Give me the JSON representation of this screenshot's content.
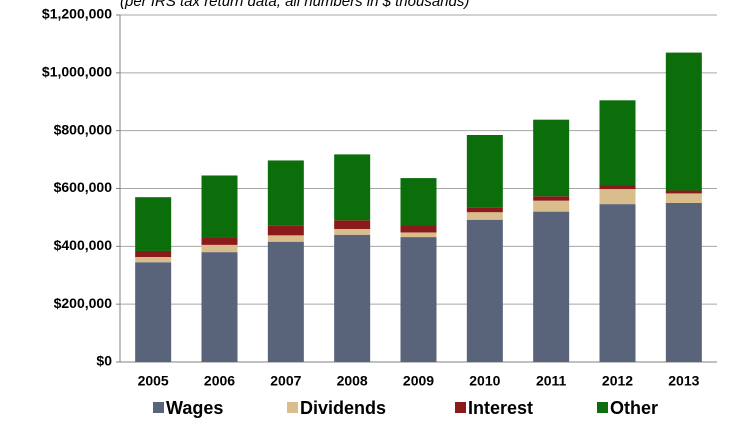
{
  "chart_data": {
    "type": "stacked-bar",
    "subtitle": "(per IRS tax return data, all numbers in $ thousands)",
    "categories": [
      "2005",
      "2006",
      "2007",
      "2008",
      "2009",
      "2010",
      "2011",
      "2012",
      "2013"
    ],
    "series": [
      {
        "name": "Wages",
        "color": "#59637a",
        "values": [
          345000,
          380000,
          416000,
          440000,
          432000,
          492000,
          520000,
          546000,
          550000
        ]
      },
      {
        "name": "Dividends",
        "color": "#d9bd8c",
        "values": [
          18000,
          25000,
          22000,
          20000,
          16000,
          26000,
          38000,
          52000,
          33000
        ]
      },
      {
        "name": "Interest",
        "color": "#8b1a1a",
        "values": [
          21000,
          27000,
          35000,
          30000,
          24000,
          17000,
          15000,
          14000,
          10000
        ]
      },
      {
        "name": "Other",
        "color": "#0b6e0b",
        "values": [
          186000,
          213000,
          224000,
          228000,
          164000,
          250000,
          265000,
          293000,
          477000
        ]
      }
    ],
    "ylim": [
      0,
      1200000
    ],
    "yticks": [
      {
        "value": 0,
        "label": "$0"
      },
      {
        "value": 200000,
        "label": "$200,000"
      },
      {
        "value": 400000,
        "label": "$400,000"
      },
      {
        "value": 600000,
        "label": "$600,000"
      },
      {
        "value": 800000,
        "label": "$800,000"
      },
      {
        "value": 1000000,
        "label": "$1,000,000"
      },
      {
        "value": 1200000,
        "label": "$1,200,000"
      }
    ],
    "grid": true
  }
}
